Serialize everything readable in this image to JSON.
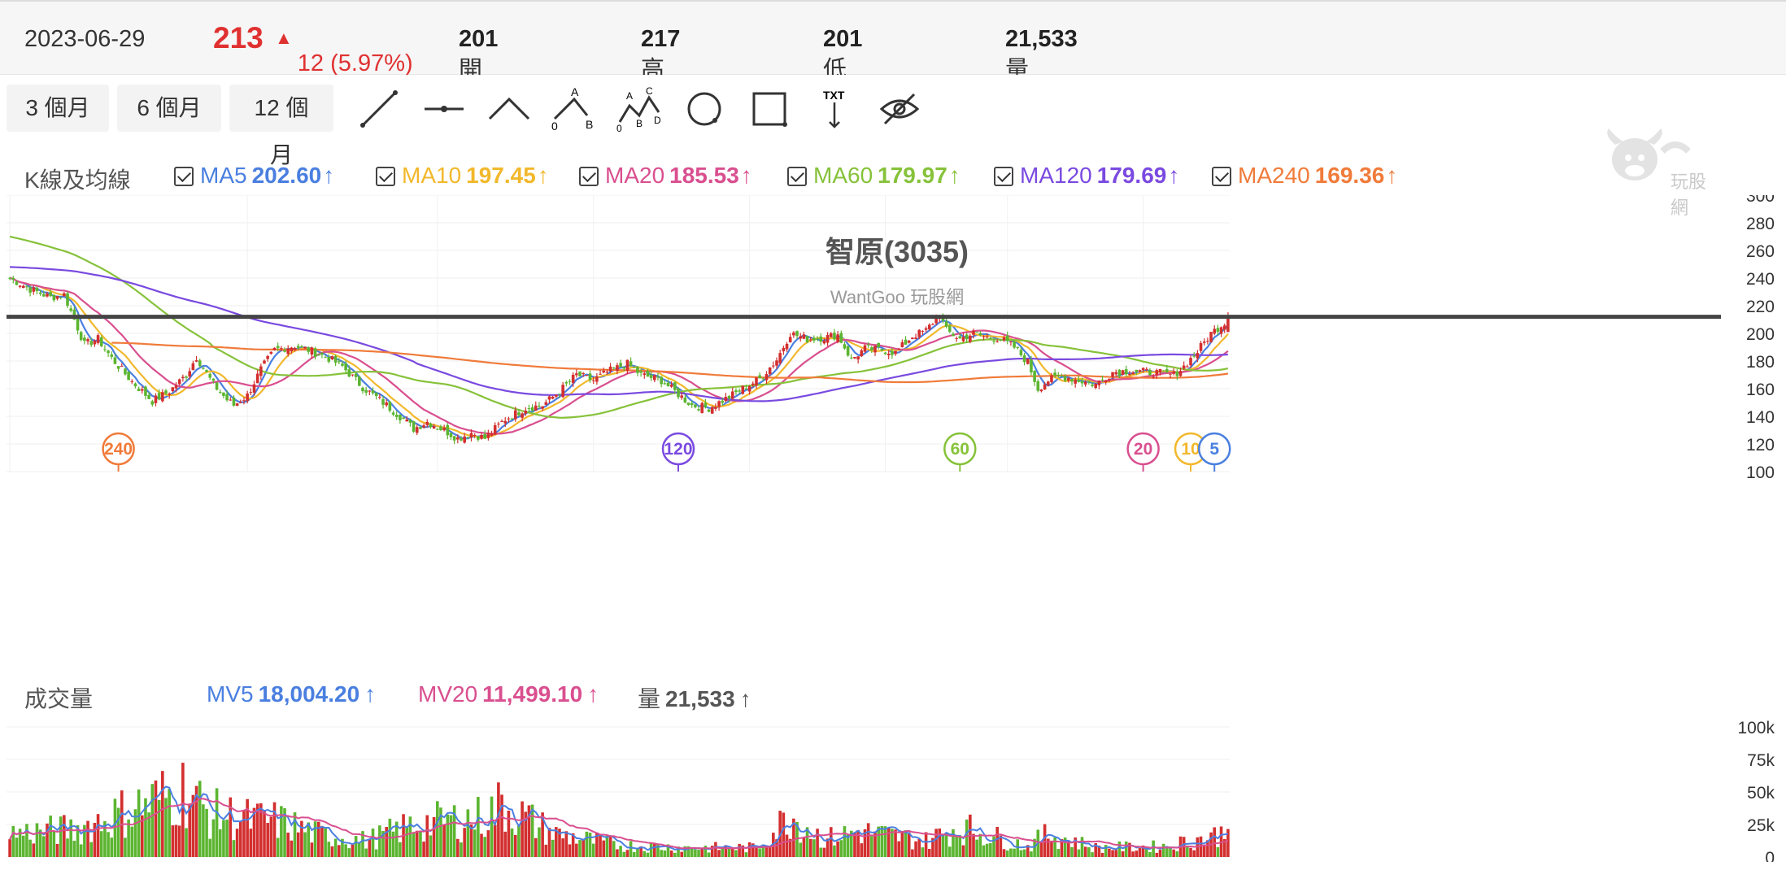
{
  "quote": {
    "date": "2023-06-29",
    "price": "213",
    "change_arrow": "▲",
    "change": "12 (5.97%)",
    "open_label": "開",
    "open": "201",
    "high_label": "高",
    "high": "217",
    "low_label": "低",
    "low": "201",
    "volume_label": "量",
    "volume": "21,533"
  },
  "toolbar": {
    "ranges": [
      "3 個月",
      "6 個月",
      "12 個月"
    ],
    "tools": [
      "line-tool-icon",
      "horizontal-line-tool-icon",
      "angle-tool-icon",
      "abc-pattern-tool-icon",
      "abcd-pattern-tool-icon",
      "circle-tool-icon",
      "rectangle-tool-icon",
      "text-tool-icon",
      "hide-drawings-icon"
    ],
    "tool_text": {
      "a": "A",
      "b": "B",
      "c": "C",
      "d": "D",
      "zero": "0",
      "txt": "TXT"
    }
  },
  "ma_legend": {
    "title": "K線及均線",
    "items": [
      {
        "label": "MA5",
        "value": "202.60",
        "arrow": "↑",
        "color": "#4a7fe0"
      },
      {
        "label": "MA10",
        "value": "197.45",
        "arrow": "↑",
        "color": "#f2b82c"
      },
      {
        "label": "MA20",
        "value": "185.53",
        "arrow": "↑",
        "color": "#d94f8f"
      },
      {
        "label": "MA60",
        "value": "179.97",
        "arrow": "↑",
        "color": "#86c23a"
      },
      {
        "label": "MA120",
        "value": "179.69",
        "arrow": "↑",
        "color": "#7a4ae0"
      },
      {
        "label": "MA240",
        "value": "169.36",
        "arrow": "↑",
        "color": "#f07b3a"
      }
    ]
  },
  "vol_legend": {
    "title": "成交量",
    "items": [
      {
        "label": "MV5",
        "value": "18,004.20",
        "arrow": "↑",
        "color": "#4a7fe0"
      },
      {
        "label": "MV20",
        "value": "11,499.10",
        "arrow": "↑",
        "color": "#d94f8f"
      },
      {
        "label": "量",
        "value": "21,533",
        "arrow": "↑",
        "color": "#555555"
      }
    ]
  },
  "watermark": "玩股網",
  "chart_data": {
    "type": "candlestick",
    "title": "智原(3035)",
    "subtitle": "WantGoo 玩股網",
    "ylim": [
      100,
      300
    ],
    "yticks": [
      100,
      120,
      140,
      160,
      180,
      200,
      220,
      240,
      260,
      280,
      300
    ],
    "horizontal_line": 212,
    "colors": {
      "up": "#d32f2f",
      "down": "#5cb531"
    },
    "ma_markers": [
      {
        "label": "240",
        "color": "#f07b3a",
        "x_index": 32
      },
      {
        "label": "120",
        "color": "#7a4ae0",
        "x_index": 197
      },
      {
        "label": "60",
        "color": "#86c23a",
        "x_index": 280
      },
      {
        "label": "20",
        "color": "#d94f8f",
        "x_index": 334
      },
      {
        "label": "10",
        "color": "#f2b82c",
        "x_index": 348
      },
      {
        "label": "5",
        "color": "#4a7fe0",
        "x_index": 355
      }
    ],
    "close_anchors": [
      [
        0,
        240
      ],
      [
        6,
        232
      ],
      [
        12,
        226
      ],
      [
        16,
        228
      ],
      [
        22,
        192
      ],
      [
        26,
        196
      ],
      [
        30,
        182
      ],
      [
        36,
        165
      ],
      [
        42,
        151
      ],
      [
        47,
        158
      ],
      [
        52,
        170
      ],
      [
        55,
        183
      ],
      [
        60,
        163
      ],
      [
        64,
        152
      ],
      [
        66,
        148
      ],
      [
        70,
        155
      ],
      [
        74,
        174
      ],
      [
        78,
        188
      ],
      [
        84,
        191
      ],
      [
        88,
        188
      ],
      [
        94,
        182
      ],
      [
        98,
        176
      ],
      [
        104,
        161
      ],
      [
        110,
        150
      ],
      [
        116,
        138
      ],
      [
        119,
        131
      ],
      [
        123,
        136
      ],
      [
        128,
        130
      ],
      [
        132,
        124
      ],
      [
        136,
        128
      ],
      [
        140,
        124
      ],
      [
        146,
        138
      ],
      [
        152,
        146
      ],
      [
        157,
        148
      ],
      [
        162,
        158
      ],
      [
        167,
        170
      ],
      [
        172,
        166
      ],
      [
        176,
        172
      ],
      [
        182,
        178
      ],
      [
        186,
        170
      ],
      [
        192,
        166
      ],
      [
        196,
        158
      ],
      [
        201,
        148
      ],
      [
        206,
        146
      ],
      [
        212,
        154
      ],
      [
        216,
        160
      ],
      [
        221,
        167
      ],
      [
        226,
        181
      ],
      [
        230,
        200
      ],
      [
        235,
        196
      ],
      [
        240,
        197
      ],
      [
        244,
        199
      ],
      [
        248,
        181
      ],
      [
        252,
        189
      ],
      [
        257,
        188
      ],
      [
        261,
        186
      ],
      [
        266,
        198
      ],
      [
        270,
        202
      ],
      [
        274,
        214
      ],
      [
        276,
        202
      ],
      [
        280,
        196
      ],
      [
        284,
        200
      ],
      [
        288,
        197
      ],
      [
        292,
        196
      ],
      [
        296,
        190
      ],
      [
        300,
        179
      ],
      [
        303,
        160
      ],
      [
        306,
        166
      ],
      [
        310,
        169
      ],
      [
        315,
        166
      ],
      [
        320,
        163
      ],
      [
        325,
        172
      ],
      [
        330,
        173
      ],
      [
        335,
        172
      ],
      [
        340,
        171
      ],
      [
        343,
        170
      ],
      [
        346,
        176
      ],
      [
        350,
        187
      ],
      [
        354,
        200
      ],
      [
        358,
        208
      ],
      [
        359,
        213
      ]
    ],
    "vol_ylim": [
      0,
      100000
    ],
    "vol_yticks": [
      0,
      25000,
      50000,
      75000,
      100000
    ],
    "vol_tick_labels": [
      "0",
      "25k",
      "50k",
      "75k",
      "100k"
    ],
    "vol_anchors": [
      [
        0,
        20000
      ],
      [
        20,
        24000
      ],
      [
        40,
        45000
      ],
      [
        52,
        58000
      ],
      [
        58,
        38000
      ],
      [
        70,
        32000
      ],
      [
        80,
        30000
      ],
      [
        90,
        20000
      ],
      [
        105,
        14000
      ],
      [
        120,
        28000
      ],
      [
        140,
        34000
      ],
      [
        145,
        45000
      ],
      [
        160,
        20000
      ],
      [
        180,
        10000
      ],
      [
        200,
        8000
      ],
      [
        220,
        8000
      ],
      [
        230,
        36000
      ],
      [
        240,
        15000
      ],
      [
        250,
        22000
      ],
      [
        270,
        14000
      ],
      [
        280,
        26000
      ],
      [
        300,
        9000
      ],
      [
        306,
        20000
      ],
      [
        320,
        8000
      ],
      [
        340,
        9000
      ],
      [
        355,
        18000
      ],
      [
        359,
        21533
      ]
    ]
  }
}
